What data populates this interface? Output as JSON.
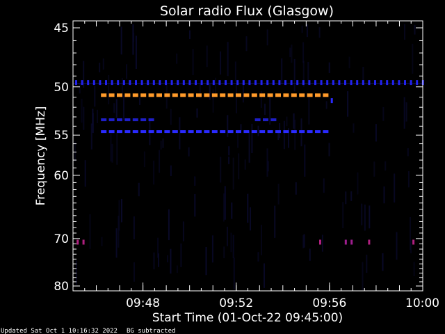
{
  "chart_data": {
    "type": "heatmap",
    "title": "Solar radio Flux (Glasgow)",
    "xlabel": "Start Time (01-Oct-22 09:45:00)",
    "ylabel": "Frequency [MHz]",
    "x_unit": "minutes",
    "xlim": [
      0,
      15
    ],
    "ylim": [
      80,
      45
    ],
    "y_scale": "reciprocal",
    "x_ticks": [
      {
        "value": 3,
        "label": "09:48"
      },
      {
        "value": 7,
        "label": "09:52"
      },
      {
        "value": 11,
        "label": "09:56"
      },
      {
        "value": 15,
        "label": "10:00"
      }
    ],
    "y_ticks": [
      {
        "value": 45,
        "label": "45"
      },
      {
        "value": 50,
        "label": "50"
      },
      {
        "value": 55,
        "label": "55"
      },
      {
        "value": 60,
        "label": "60"
      },
      {
        "value": 70,
        "label": "70"
      },
      {
        "value": 80,
        "label": "80"
      }
    ],
    "y_minor_ticks": [
      46,
      47,
      48,
      49,
      51,
      52,
      53,
      54,
      56,
      57,
      58,
      59,
      61,
      62,
      63,
      64,
      65,
      66,
      67,
      68,
      69,
      71,
      72,
      73,
      74,
      75,
      76,
      77,
      78,
      79
    ],
    "x_minor_step": 0.5,
    "bands": [
      {
        "freq": 49.5,
        "start": 0,
        "end": 15,
        "level": "low",
        "color": "#2222ee",
        "style": "ticks"
      },
      {
        "freq": 50.8,
        "start": 1.2,
        "end": 11.0,
        "level": "high",
        "color": "#ff9a2a",
        "style": "dashed"
      },
      {
        "freq": 53.3,
        "start": 1.2,
        "end": 3.5,
        "level": "low",
        "color": "#1e1ec8",
        "style": "dashed"
      },
      {
        "freq": 53.3,
        "start": 7.8,
        "end": 8.8,
        "level": "low",
        "color": "#1e1ec8",
        "style": "dashed"
      },
      {
        "freq": 54.6,
        "start": 1.2,
        "end": 11.0,
        "level": "low",
        "color": "#2a2aff",
        "style": "dashed"
      }
    ],
    "spots": [
      {
        "time": 0.2,
        "freq": 70.6,
        "color": "#b02080"
      },
      {
        "time": 0.45,
        "freq": 70.6,
        "color": "#b02080"
      },
      {
        "time": 10.6,
        "freq": 70.6,
        "color": "#b02080"
      },
      {
        "time": 11.7,
        "freq": 70.6,
        "color": "#a01e90"
      },
      {
        "time": 11.95,
        "freq": 70.6,
        "color": "#a01e90"
      },
      {
        "time": 12.7,
        "freq": 70.6,
        "color": "#b02080"
      },
      {
        "time": 14.6,
        "freq": 70.6,
        "color": "#b02080"
      },
      {
        "time": 11.1,
        "freq": 51.3,
        "color": "#2a2aff"
      }
    ],
    "grid": false,
    "colors": {
      "background": "#000000",
      "axes": "#ffffff",
      "noise": "#0a0a2e"
    }
  },
  "footer": {
    "updated": "Updated Sat Oct  1 10:16:32 2022",
    "note": "BG subtracted"
  }
}
